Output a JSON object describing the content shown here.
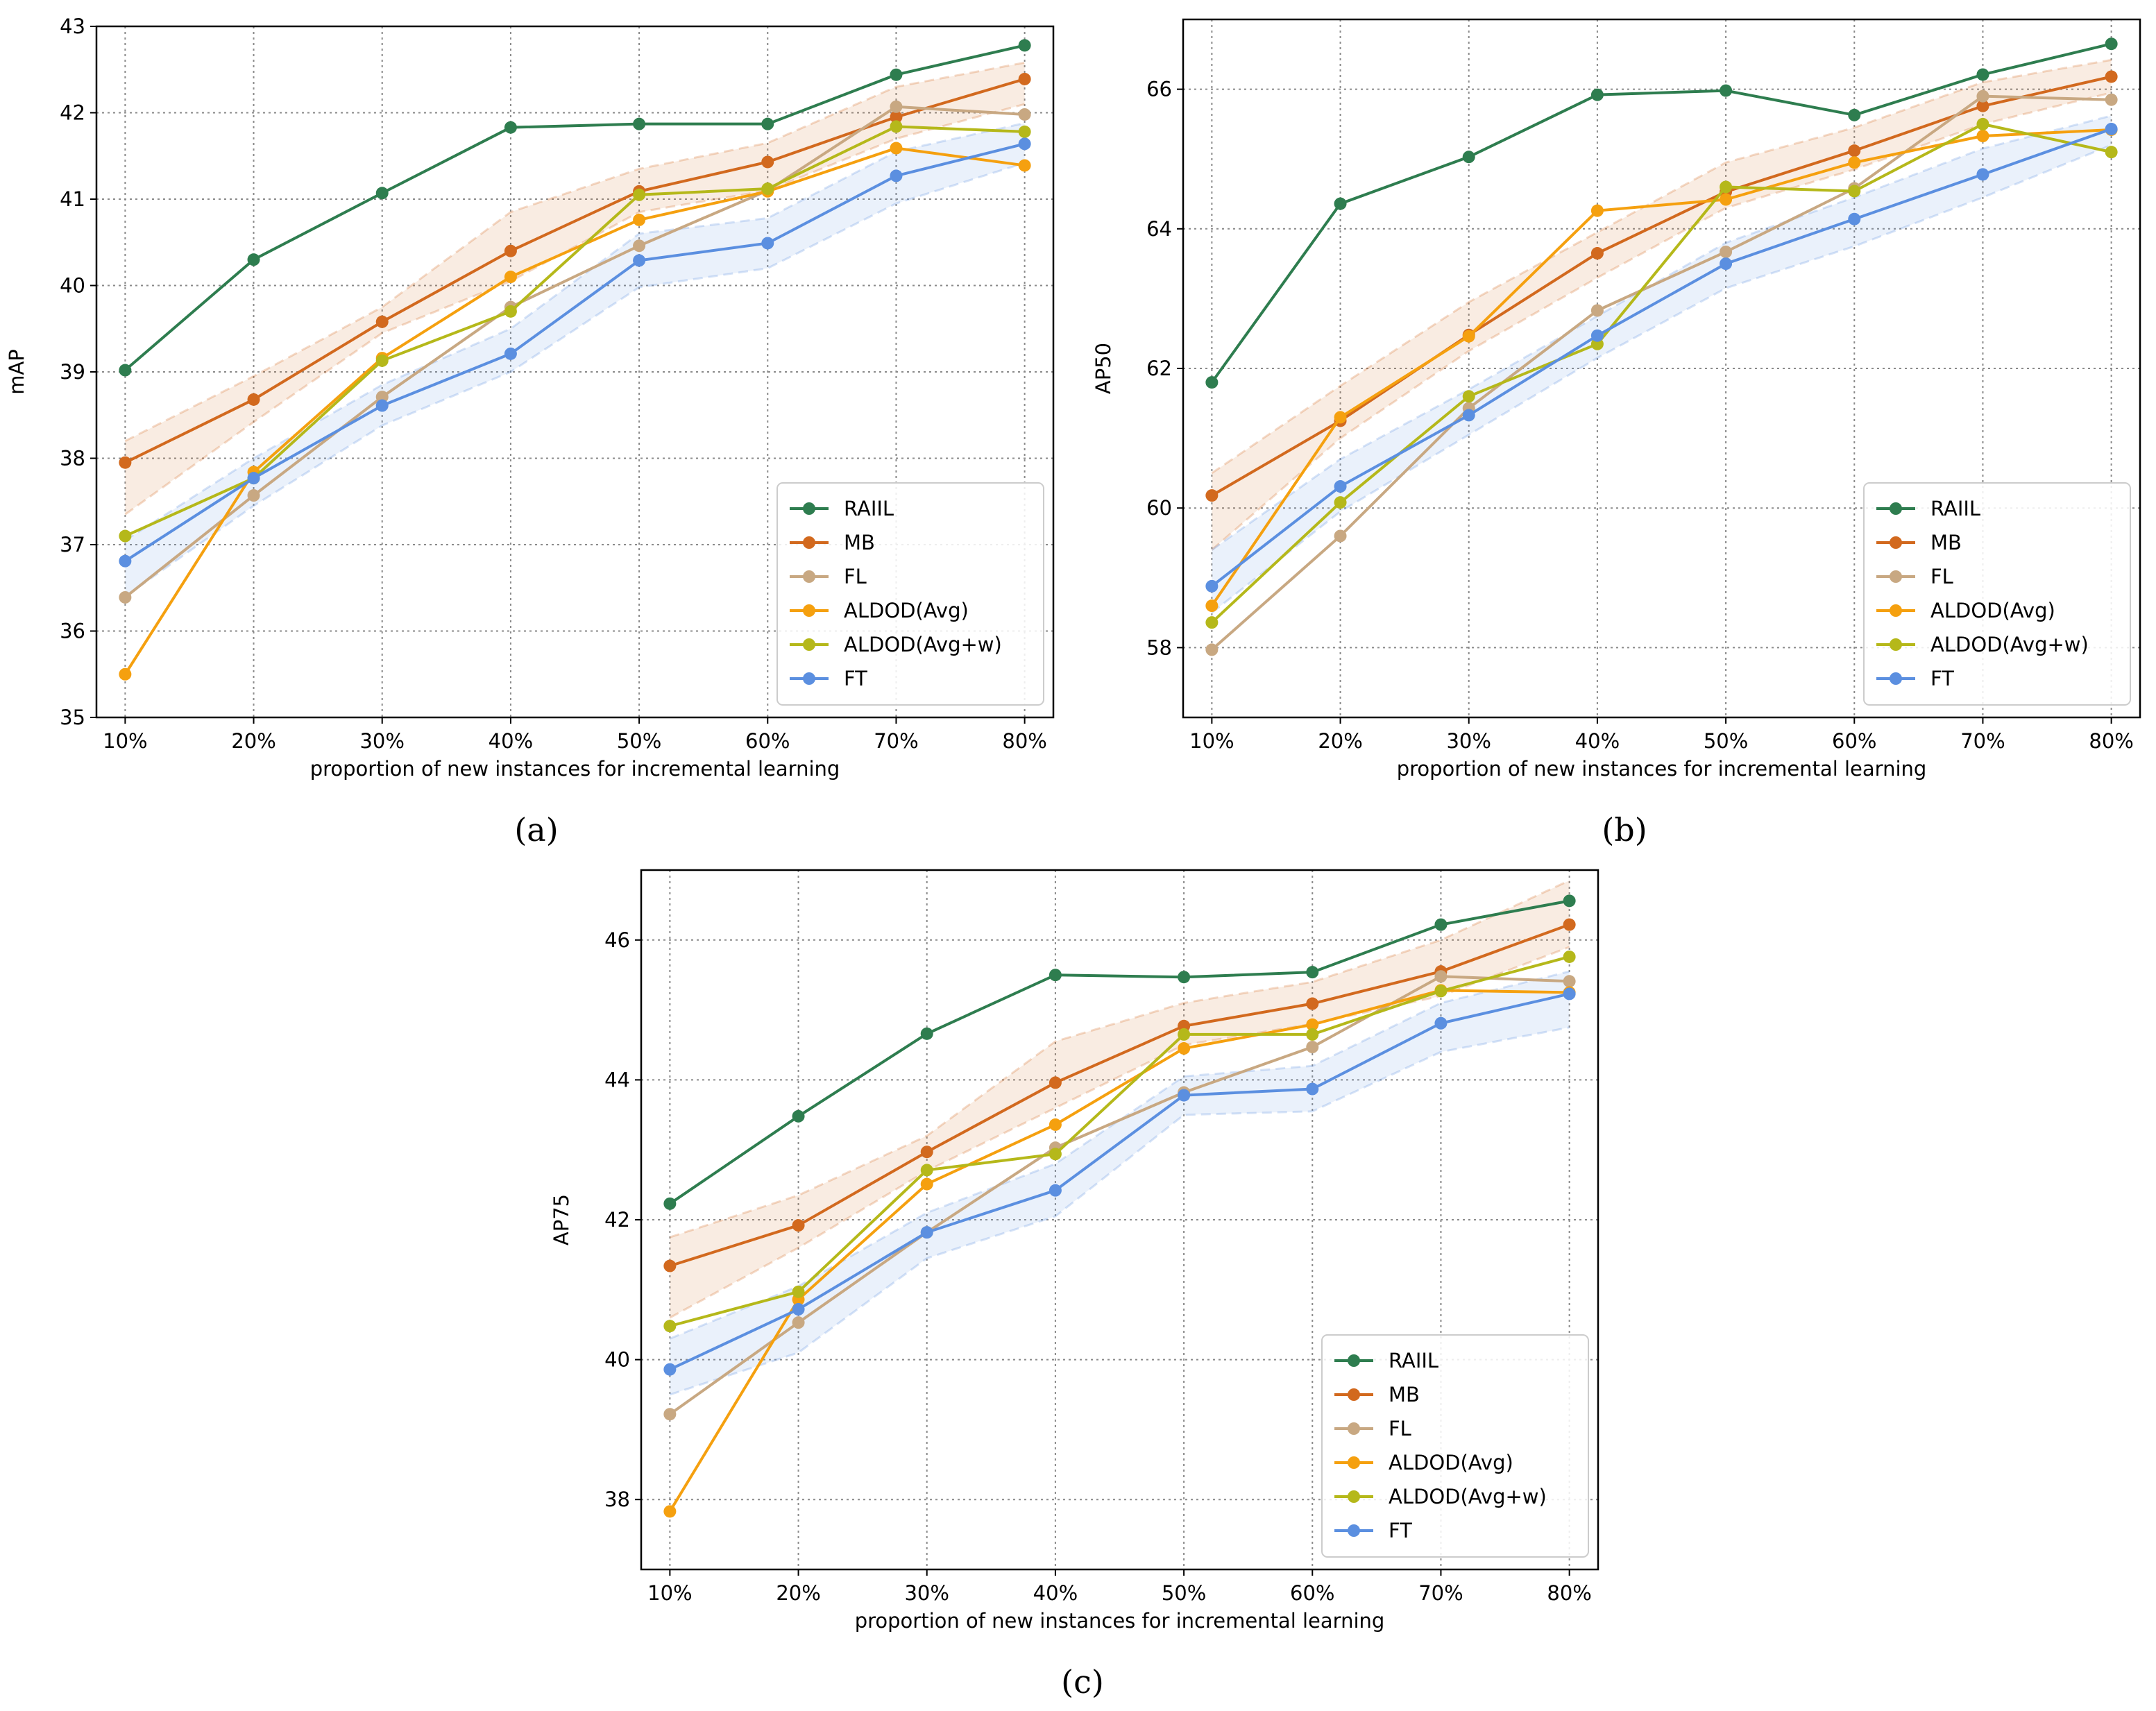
{
  "chart_data": [
    {
      "type": "line",
      "caption": "(a)",
      "title": "",
      "xlabel": "proportion of new instances for incremental learning",
      "ylabel": "mAP",
      "categories": [
        "10%",
        "20%",
        "30%",
        "40%",
        "50%",
        "60%",
        "70%",
        "80%"
      ],
      "ylim": [
        35,
        43
      ],
      "yticks": [
        "35",
        "36",
        "37",
        "38",
        "39",
        "40",
        "41",
        "42",
        "43"
      ],
      "grid": true,
      "legend_position": "lower-right",
      "series": [
        {
          "name": "RAIIL",
          "color": "#2e7d4f",
          "values": [
            39.02,
            40.3,
            41.07,
            41.83,
            41.87,
            41.87,
            42.44,
            42.78
          ]
        },
        {
          "name": "MB",
          "color": "#d2691e",
          "values": [
            37.95,
            38.68,
            39.58,
            40.4,
            41.09,
            41.43,
            41.95,
            42.39
          ],
          "band": {
            "low": [
              37.35,
              38.42,
              39.45,
              40.05,
              40.85,
              41.1,
              41.7,
              42.1
            ],
            "high": [
              38.2,
              38.95,
              39.75,
              40.85,
              41.35,
              41.65,
              42.3,
              42.58
            ]
          }
        },
        {
          "name": "FL",
          "color": "#c8a882",
          "values": [
            36.39,
            37.57,
            38.71,
            39.75,
            40.46,
            41.1,
            42.07,
            41.98
          ]
        },
        {
          "name": "ALDOD(Avg)",
          "color": "#f5a00f",
          "values": [
            35.5,
            37.84,
            39.16,
            40.1,
            40.76,
            41.09,
            41.59,
            41.39
          ]
        },
        {
          "name": "ALDOD(Avg+w)",
          "color": "#b5b81a",
          "values": [
            37.1,
            37.77,
            39.13,
            39.7,
            41.05,
            41.12,
            41.84,
            41.78
          ]
        },
        {
          "name": "FT",
          "color": "#5b8fe0",
          "values": [
            36.81,
            37.77,
            38.61,
            39.21,
            40.29,
            40.49,
            41.27,
            41.64
          ],
          "band": {
            "low": [
              36.4,
              37.45,
              38.38,
              39.0,
              39.98,
              40.2,
              40.95,
              41.42
            ],
            "high": [
              37.05,
              38.0,
              38.85,
              39.5,
              40.6,
              40.78,
              41.55,
              41.88
            ]
          }
        }
      ]
    },
    {
      "type": "line",
      "caption": "(b)",
      "title": "",
      "xlabel": "proportion of new instances for incremental learning",
      "ylabel": "AP50",
      "categories": [
        "10%",
        "20%",
        "30%",
        "40%",
        "50%",
        "60%",
        "70%",
        "80%"
      ],
      "ylim": [
        57,
        67
      ],
      "yticks": [
        "58",
        "60",
        "62",
        "64",
        "66"
      ],
      "grid": true,
      "legend_position": "lower-right",
      "series": [
        {
          "name": "RAIIL",
          "color": "#2e7d4f",
          "values": [
            61.8,
            64.36,
            65.03,
            65.92,
            65.98,
            65.63,
            66.21,
            66.65
          ]
        },
        {
          "name": "MB",
          "color": "#d2691e",
          "values": [
            60.18,
            61.25,
            62.48,
            63.65,
            64.53,
            65.12,
            65.76,
            66.18
          ],
          "band": {
            "low": [
              59.4,
              61.0,
              62.25,
              63.3,
              64.3,
              64.85,
              65.5,
              65.95
            ],
            "high": [
              60.5,
              61.75,
              62.95,
              63.95,
              64.95,
              65.45,
              66.1,
              66.42
            ]
          }
        },
        {
          "name": "FL",
          "color": "#c8a882",
          "values": [
            57.97,
            59.6,
            61.43,
            62.83,
            63.67,
            64.58,
            65.9,
            65.85
          ]
        },
        {
          "name": "ALDOD(Avg)",
          "color": "#f5a00f",
          "values": [
            58.6,
            61.3,
            62.46,
            64.26,
            64.42,
            64.95,
            65.33,
            65.42
          ]
        },
        {
          "name": "ALDOD(Avg+w)",
          "color": "#b5b81a",
          "values": [
            58.36,
            60.08,
            61.6,
            62.35,
            64.6,
            64.54,
            65.5,
            65.1
          ]
        },
        {
          "name": "FT",
          "color": "#5b8fe0",
          "values": [
            58.88,
            60.31,
            61.33,
            62.47,
            63.5,
            64.14,
            64.78,
            65.43
          ],
          "band": {
            "low": [
              58.5,
              59.95,
              61.05,
              62.15,
              63.15,
              63.75,
              64.45,
              65.2
            ],
            "high": [
              59.4,
              60.7,
              61.7,
              62.75,
              63.8,
              64.45,
              65.15,
              65.62
            ]
          }
        }
      ]
    },
    {
      "type": "line",
      "caption": "(c)",
      "title": "",
      "xlabel": "proportion of new instances for incremental learning",
      "ylabel": "AP75",
      "categories": [
        "10%",
        "20%",
        "30%",
        "40%",
        "50%",
        "60%",
        "70%",
        "80%"
      ],
      "ylim": [
        37,
        47
      ],
      "yticks": [
        "38",
        "40",
        "42",
        "44",
        "46"
      ],
      "grid": true,
      "legend_position": "lower-right",
      "series": [
        {
          "name": "RAIIL",
          "color": "#2e7d4f",
          "values": [
            42.23,
            43.48,
            44.66,
            45.5,
            45.47,
            45.54,
            46.22,
            46.56
          ]
        },
        {
          "name": "MB",
          "color": "#d2691e",
          "values": [
            41.34,
            41.92,
            42.97,
            43.96,
            44.77,
            45.09,
            45.55,
            46.22
          ],
          "band": {
            "low": [
              40.6,
              41.6,
              42.7,
              43.6,
              44.5,
              44.8,
              45.2,
              45.9
            ],
            "high": [
              41.75,
              42.35,
              43.2,
              44.55,
              45.1,
              45.4,
              46.0,
              46.85
            ]
          }
        },
        {
          "name": "FL",
          "color": "#c8a882",
          "values": [
            39.22,
            40.53,
            41.82,
            43.03,
            43.82,
            44.47,
            45.48,
            45.41
          ]
        },
        {
          "name": "ALDOD(Avg)",
          "color": "#f5a00f",
          "values": [
            37.83,
            40.86,
            42.51,
            43.36,
            44.45,
            44.79,
            45.28,
            45.25
          ]
        },
        {
          "name": "ALDOD(Avg+w)",
          "color": "#b5b81a",
          "values": [
            40.48,
            40.97,
            42.71,
            42.94,
            44.65,
            44.65,
            45.27,
            45.76
          ]
        },
        {
          "name": "FT",
          "color": "#5b8fe0",
          "values": [
            39.86,
            40.72,
            41.82,
            42.42,
            43.78,
            43.87,
            44.81,
            45.23
          ],
          "band": {
            "low": [
              39.5,
              40.1,
              41.45,
              42.05,
              43.5,
              43.55,
              44.4,
              44.75
            ],
            "high": [
              40.3,
              41.05,
              42.1,
              42.8,
              44.05,
              44.2,
              45.1,
              45.55
            ]
          }
        }
      ]
    }
  ]
}
